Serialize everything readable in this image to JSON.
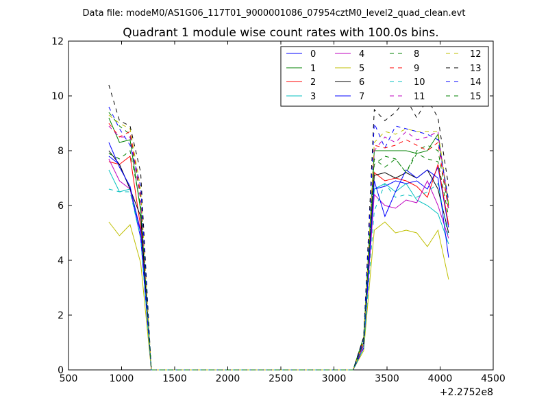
{
  "figure": {
    "suptitle": "Data file: modeM0/AS1G06_117T01_9000001086_07954cztM0_level2_quad_clean.evt"
  },
  "chart_data": {
    "type": "line",
    "title": "Quadrant 1 module wise count rates with 100.0s bins.",
    "xlabel": "",
    "ylabel": "",
    "x_offset_label": "+2.2752e8",
    "xlim": [
      500,
      4500
    ],
    "ylim": [
      0,
      12
    ],
    "xticks": [
      500,
      1000,
      1500,
      2000,
      2500,
      3000,
      3500,
      4000,
      4500
    ],
    "yticks": [
      0,
      2,
      4,
      6,
      8,
      10,
      12
    ],
    "grid": false,
    "legend_position": "top-right",
    "legend_columns": 4,
    "x": [
      880,
      980,
      1080,
      1180,
      1280,
      1380,
      1480,
      1580,
      1680,
      1780,
      1880,
      1980,
      2080,
      2180,
      2280,
      2380,
      2480,
      2580,
      2680,
      2780,
      2880,
      2980,
      3080,
      3180,
      3280,
      3380,
      3480,
      3580,
      3680,
      3780,
      3880,
      3980,
      4080
    ],
    "series": [
      {
        "name": "0",
        "color": "#0000ff",
        "dash": "solid",
        "values": [
          7.8,
          7.5,
          6.6,
          4.8,
          0,
          0,
          0,
          0,
          0,
          0,
          0,
          0,
          0,
          0,
          0,
          0,
          0,
          0,
          0,
          0,
          0,
          0,
          0,
          0,
          1.0,
          6.6,
          6.7,
          6.9,
          6.8,
          6.9,
          6.6,
          7.4,
          5.2
        ]
      },
      {
        "name": "1",
        "color": "#008000",
        "dash": "solid",
        "values": [
          9.2,
          8.3,
          8.4,
          5.8,
          0,
          0,
          0,
          0,
          0,
          0,
          0,
          0,
          0,
          0,
          0,
          0,
          0,
          0,
          0,
          0,
          0,
          0,
          0,
          0,
          1.2,
          8.0,
          8.0,
          8.0,
          8.0,
          7.9,
          8.0,
          8.6,
          6.0
        ]
      },
      {
        "name": "2",
        "color": "#ff0000",
        "dash": "solid",
        "values": [
          7.6,
          7.5,
          7.8,
          5.2,
          0,
          0,
          0,
          0,
          0,
          0,
          0,
          0,
          0,
          0,
          0,
          0,
          0,
          0,
          0,
          0,
          0,
          0,
          0,
          0,
          0.9,
          7.2,
          6.9,
          7.0,
          6.9,
          6.7,
          6.3,
          7.5,
          5.3
        ]
      },
      {
        "name": "3",
        "color": "#00bfbf",
        "dash": "solid",
        "values": [
          7.3,
          6.5,
          6.6,
          5.0,
          0,
          0,
          0,
          0,
          0,
          0,
          0,
          0,
          0,
          0,
          0,
          0,
          0,
          0,
          0,
          0,
          0,
          0,
          0,
          0,
          0.8,
          6.6,
          6.8,
          6.5,
          6.8,
          6.2,
          6.0,
          5.7,
          4.6
        ]
      },
      {
        "name": "4",
        "color": "#bf00bf",
        "dash": "solid",
        "values": [
          7.7,
          6.9,
          6.6,
          5.1,
          0,
          0,
          0,
          0,
          0,
          0,
          0,
          0,
          0,
          0,
          0,
          0,
          0,
          0,
          0,
          0,
          0,
          0,
          0,
          0,
          0.9,
          6.4,
          6.0,
          5.9,
          6.2,
          6.1,
          6.9,
          6.0,
          4.8
        ]
      },
      {
        "name": "5",
        "color": "#bfbf00",
        "dash": "solid",
        "values": [
          5.4,
          4.9,
          5.3,
          3.9,
          0,
          0,
          0,
          0,
          0,
          0,
          0,
          0,
          0,
          0,
          0,
          0,
          0,
          0,
          0,
          0,
          0,
          0,
          0,
          0,
          0.7,
          5.1,
          5.4,
          5.0,
          5.1,
          5.0,
          4.5,
          5.1,
          3.3
        ]
      },
      {
        "name": "6",
        "color": "#000000",
        "dash": "solid",
        "values": [
          8.0,
          7.5,
          6.6,
          5.6,
          0,
          0,
          0,
          0,
          0,
          0,
          0,
          0,
          0,
          0,
          0,
          0,
          0,
          0,
          0,
          0,
          0,
          0,
          0,
          0,
          1.0,
          7.1,
          7.2,
          7.0,
          7.2,
          7.0,
          7.3,
          6.6,
          5.0
        ]
      },
      {
        "name": "7",
        "color": "#0000ff",
        "dash": "solid",
        "values": [
          8.3,
          7.4,
          6.7,
          5.0,
          0,
          0,
          0,
          0,
          0,
          0,
          0,
          0,
          0,
          0,
          0,
          0,
          0,
          0,
          0,
          0,
          0,
          0,
          0,
          0,
          0.8,
          6.9,
          5.6,
          6.5,
          7.3,
          7.0,
          7.3,
          7.0,
          4.1
        ]
      },
      {
        "name": "8",
        "color": "#008000",
        "dash": "dashed",
        "values": [
          9.4,
          8.9,
          8.6,
          6.3,
          0,
          0,
          0,
          0,
          0,
          0,
          0,
          0,
          0,
          0,
          0,
          0,
          0,
          0,
          0,
          0,
          0,
          0,
          0,
          0,
          1.1,
          7.5,
          7.8,
          7.7,
          7.2,
          8.0,
          8.2,
          8.0,
          5.9
        ]
      },
      {
        "name": "9",
        "color": "#ff0000",
        "dash": "dashed",
        "values": [
          9.0,
          8.5,
          8.7,
          6.4,
          0,
          0,
          0,
          0,
          0,
          0,
          0,
          0,
          0,
          0,
          0,
          0,
          0,
          0,
          0,
          0,
          0,
          0,
          0,
          0,
          1.1,
          8.2,
          8.1,
          8.2,
          8.4,
          8.2,
          8.0,
          8.3,
          5.8
        ]
      },
      {
        "name": "10",
        "color": "#00bfbf",
        "dash": "dashed",
        "values": [
          6.6,
          6.5,
          6.5,
          4.8,
          0,
          0,
          0,
          0,
          0,
          0,
          0,
          0,
          0,
          0,
          0,
          0,
          0,
          0,
          0,
          0,
          0,
          0,
          0,
          0,
          0.8,
          5.8,
          6.8,
          6.3,
          6.4,
          6.3,
          6.5,
          6.8,
          4.8
        ]
      },
      {
        "name": "11",
        "color": "#bf00bf",
        "dash": "dashed",
        "values": [
          8.9,
          8.5,
          8.5,
          6.2,
          0,
          0,
          0,
          0,
          0,
          0,
          0,
          0,
          0,
          0,
          0,
          0,
          0,
          0,
          0,
          0,
          0,
          0,
          0,
          0,
          1.0,
          8.0,
          8.5,
          8.3,
          8.7,
          8.4,
          8.5,
          8.7,
          5.9
        ]
      },
      {
        "name": "12",
        "color": "#bfbf00",
        "dash": "dashed",
        "values": [
          9.3,
          9.0,
          8.8,
          6.6,
          0,
          0,
          0,
          0,
          0,
          0,
          0,
          0,
          0,
          0,
          0,
          0,
          0,
          0,
          0,
          0,
          0,
          0,
          0,
          0,
          1.0,
          8.3,
          8.7,
          8.6,
          8.8,
          8.7,
          8.7,
          8.7,
          6.1
        ]
      },
      {
        "name": "13",
        "color": "#000000",
        "dash": "dashed",
        "values": [
          10.4,
          9.1,
          8.9,
          7.2,
          0,
          0,
          0,
          0,
          0,
          0,
          0,
          0,
          0,
          0,
          0,
          0,
          0,
          0,
          0,
          0,
          0,
          0,
          0,
          0,
          1.2,
          9.5,
          9.1,
          9.4,
          9.9,
          9.2,
          9.9,
          9.2,
          6.7
        ]
      },
      {
        "name": "14",
        "color": "#0000ff",
        "dash": "dashed",
        "values": [
          9.6,
          8.8,
          8.2,
          6.7,
          0,
          0,
          0,
          0,
          0,
          0,
          0,
          0,
          0,
          0,
          0,
          0,
          0,
          0,
          0,
          0,
          0,
          0,
          0,
          0,
          1.1,
          9.0,
          8.1,
          8.9,
          8.8,
          8.7,
          8.6,
          8.4,
          6.2
        ]
      },
      {
        "name": "15",
        "color": "#008000",
        "dash": "dashed",
        "values": [
          7.9,
          7.7,
          8.0,
          6.0,
          0,
          0,
          0,
          0,
          0,
          0,
          0,
          0,
          0,
          0,
          0,
          0,
          0,
          0,
          0,
          0,
          0,
          0,
          0,
          0,
          1.0,
          7.7,
          7.4,
          7.7,
          7.2,
          7.9,
          7.7,
          7.6,
          5.6
        ]
      }
    ]
  }
}
